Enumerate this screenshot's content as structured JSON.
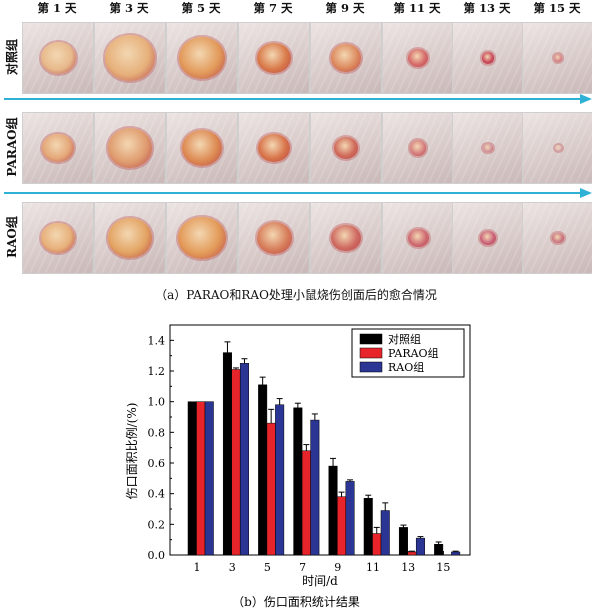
{
  "figure_a": {
    "day_labels": [
      "第 1 天",
      "第 3 天",
      "第 5 天",
      "第 7 天",
      "第 9 天",
      "第 11 天",
      "第 13 天",
      "第 15 天"
    ],
    "row_labels": [
      "对照组",
      "PARAO组",
      "RAO组"
    ],
    "caption": "（a）PARAO和RAO处理小鼠烧伤创面后的愈合情况"
  },
  "chart_data": {
    "type": "bar",
    "categories": [
      "1",
      "3",
      "5",
      "7",
      "9",
      "11",
      "13",
      "15"
    ],
    "series": [
      {
        "name": "对照组",
        "color": "#000000",
        "values": [
          1.0,
          1.32,
          1.11,
          0.96,
          0.58,
          0.37,
          0.18,
          0.07
        ],
        "errors": [
          0,
          0.07,
          0.05,
          0.03,
          0.05,
          0.02,
          0.015,
          0.015
        ]
      },
      {
        "name": "PARAO组",
        "color": "#e8242b",
        "values": [
          1.0,
          1.21,
          0.86,
          0.68,
          0.38,
          0.14,
          0.02,
          0.0
        ],
        "errors": [
          0,
          0.01,
          0.09,
          0.04,
          0.03,
          0.04,
          0.005,
          0
        ]
      },
      {
        "name": "RAO组",
        "color": "#2b3593",
        "values": [
          1.0,
          1.25,
          0.98,
          0.88,
          0.48,
          0.29,
          0.11,
          0.02
        ],
        "errors": [
          0,
          0.03,
          0.04,
          0.04,
          0.01,
          0.05,
          0.01,
          0.005
        ]
      }
    ],
    "xlabel": "时间/d",
    "ylabel": "伤口面积比例/(%)",
    "ylim": [
      0,
      1.5
    ],
    "yticks": [
      "0.0",
      "0.2",
      "0.4",
      "0.6",
      "0.8",
      "1.0",
      "1.2",
      "1.4"
    ],
    "legend_position": "top-right",
    "caption": "（b）伤口面积统计结果"
  },
  "colors": {
    "arrow": "#2fb1d6"
  }
}
